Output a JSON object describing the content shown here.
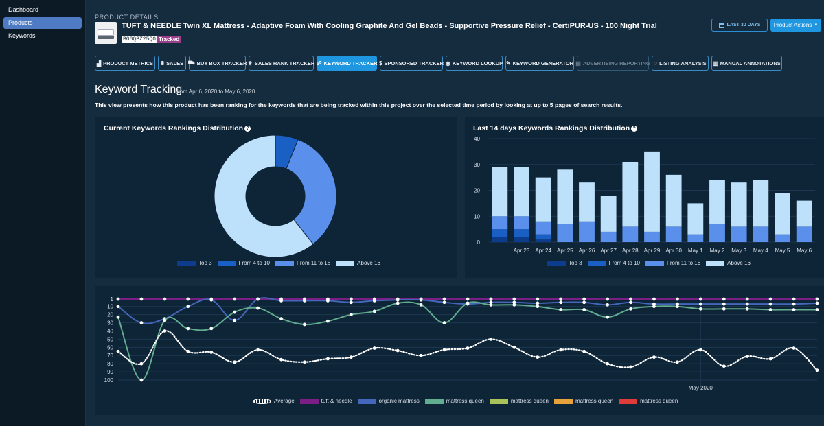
{
  "sidebar": {
    "items": [
      "Dashboard",
      "Products",
      "Keywords"
    ],
    "active": 1
  },
  "header": {
    "section_label": "PRODUCT DETAILS",
    "product_title": "TUFT & NEEDLE Twin XL Mattress - Adaptive Foam With Cooling Graphite And Gel Beads - Supportive Pressure Relief - CertiPUR-US - 100 Night Trial",
    "asin": "B00QBZ25Q0",
    "status_badge": "Tracked",
    "date_button": "LAST 30 DAYS",
    "actions_button": "Product Actions"
  },
  "tabs": [
    {
      "label": "PRODUCT METRICS",
      "icon": "bar-chart-icon",
      "glyph": "▟",
      "active": false,
      "disabled": false
    },
    {
      "label": "SALES",
      "icon": "money-bag-icon",
      "glyph": "₴",
      "active": false,
      "disabled": false
    },
    {
      "label": "BUY BOX TRACKER",
      "icon": "cart-icon",
      "glyph": "⛟",
      "active": false,
      "disabled": false
    },
    {
      "label": "SALES RANK TRACKER",
      "icon": "trophy-icon",
      "glyph": "♕",
      "active": false,
      "disabled": false
    },
    {
      "label": "KEYWORD TRACKER",
      "icon": "binoculars-icon",
      "glyph": "☍",
      "active": true,
      "disabled": false
    },
    {
      "label": "SPONSORED TRACKER",
      "icon": "dollar-icon",
      "glyph": "$",
      "active": false,
      "disabled": false
    },
    {
      "label": "KEYWORD LOOKUP",
      "icon": "eye-icon",
      "glyph": "◉",
      "active": false,
      "disabled": false
    },
    {
      "label": "KEYWORD GENERATOR",
      "icon": "wand-icon",
      "glyph": "✎",
      "active": false,
      "disabled": false
    },
    {
      "label": "ADVERTISING REPORTING",
      "icon": "report-icon",
      "glyph": "▤",
      "active": false,
      "disabled": true
    },
    {
      "label": "LISTING ANALYSIS",
      "icon": "comment-icon",
      "glyph": "◌",
      "active": false,
      "disabled": false
    },
    {
      "label": "MANUAL ANNOTATIONS",
      "icon": "book-icon",
      "glyph": "▥",
      "active": false,
      "disabled": false
    }
  ],
  "page": {
    "title": "Keyword Tracking",
    "subtitle": "from Apr 6, 2020 to May 6, 2020",
    "description": "This view presents how this product has been ranking for the keywords that are being tracked within this project over the selected time period by looking at up to 5 pages of search results."
  },
  "donut_panel": {
    "title": "Current Keywords Rankings Distribution"
  },
  "bars_panel": {
    "title": "Last 14 days Keywords Rankings Distribution"
  },
  "colors": {
    "top3": "#0d3c8c",
    "from4to10": "#1a5fc4",
    "from11to16": "#5a8fec",
    "above16": "#bde0fb",
    "average": "#ffffff",
    "tuft_needle": "#7b1f86",
    "organic_mattress": "#4466bb",
    "mattress_queen_1": "#62ac8f",
    "mattress_queen_2": "#a9c25a",
    "mattress_queen_3": "#e8a23c",
    "mattress_queen_4": "#e03b3b"
  },
  "chart_data": [
    {
      "type": "pie",
      "title": "Current Keywords Rankings Distribution",
      "categories": [
        "Top 3",
        "From 4 to 10",
        "From 11 to 16",
        "Above 16"
      ],
      "values": [
        0,
        2,
        11,
        20
      ],
      "legend_position": "bottom"
    },
    {
      "type": "bar",
      "title": "Last 14 days Keywords Rankings Distribution",
      "categories": [
        "Apr 23",
        "Apr 24",
        "Apr 25",
        "Apr 26",
        "Apr 27",
        "Apr 28",
        "Apr 29",
        "Apr 30",
        "May 1",
        "May 2",
        "May 3",
        "May 4",
        "May 5",
        "May 6"
      ],
      "stacked": true,
      "leading_bar_unlabeled": true,
      "series": [
        {
          "name": "Top 3",
          "values": [
            2,
            1,
            0,
            0,
            0,
            0,
            0,
            0,
            0,
            0,
            0,
            0,
            0,
            0
          ]
        },
        {
          "name": "From 4 to 10",
          "values": [
            3,
            2,
            0,
            0,
            0,
            0,
            0,
            0,
            0,
            0,
            0,
            0,
            0,
            0
          ]
        },
        {
          "name": "From 11 to 16",
          "values": [
            5,
            5,
            7,
            8,
            4,
            6,
            4,
            6,
            3,
            7,
            6,
            6,
            3,
            6
          ]
        },
        {
          "name": "Above 16",
          "values": [
            19,
            17,
            21,
            15,
            14,
            25,
            31,
            20,
            12,
            17,
            17,
            18,
            16,
            10
          ]
        }
      ],
      "ylim": [
        0,
        40
      ],
      "yticks": [
        0,
        10,
        20,
        30,
        40
      ],
      "legend_position": "bottom"
    },
    {
      "type": "line",
      "title": "",
      "y_reversed": true,
      "ylim": [
        1,
        100
      ],
      "yticks": [
        1,
        10,
        20,
        30,
        40,
        50,
        60,
        70,
        80,
        90,
        100
      ],
      "x_label_annotation": "May 2020",
      "x_count": 31,
      "series": [
        {
          "name": "Average",
          "values": [
            65,
            80,
            40,
            65,
            66,
            78,
            63,
            75,
            78,
            74,
            72,
            61,
            64,
            70,
            63,
            61,
            50,
            60,
            72,
            63,
            65,
            80,
            84,
            72,
            78,
            63,
            83,
            71,
            74,
            61,
            88
          ]
        },
        {
          "name": "tuft & needle",
          "values": [
            1,
            1,
            1,
            1,
            1,
            1,
            1,
            1,
            1,
            1,
            1,
            1,
            1,
            1,
            1,
            1,
            1,
            1,
            1,
            1,
            1,
            1,
            1,
            1,
            1,
            1,
            1,
            1,
            1,
            1,
            1
          ]
        },
        {
          "name": "organic mattress",
          "values": [
            10,
            30,
            25,
            10,
            2,
            27,
            1,
            3,
            3,
            3,
            5,
            3,
            2,
            2,
            5,
            7,
            5,
            5,
            6,
            5,
            5,
            8,
            5,
            7,
            7,
            7,
            7,
            7,
            7,
            7,
            6
          ]
        },
        {
          "name": "mattress queen",
          "values": [
            23,
            100,
            27,
            37,
            37,
            17,
            12,
            25,
            32,
            28,
            20,
            16,
            6,
            8,
            30,
            6,
            8,
            8,
            10,
            14,
            14,
            23,
            13,
            10,
            10,
            13,
            13,
            13,
            14,
            14,
            14
          ]
        },
        {
          "name": "mattress queen",
          "values": []
        },
        {
          "name": "mattress queen",
          "values": []
        },
        {
          "name": "mattress queen",
          "values": []
        }
      ],
      "legend_position": "bottom"
    }
  ]
}
